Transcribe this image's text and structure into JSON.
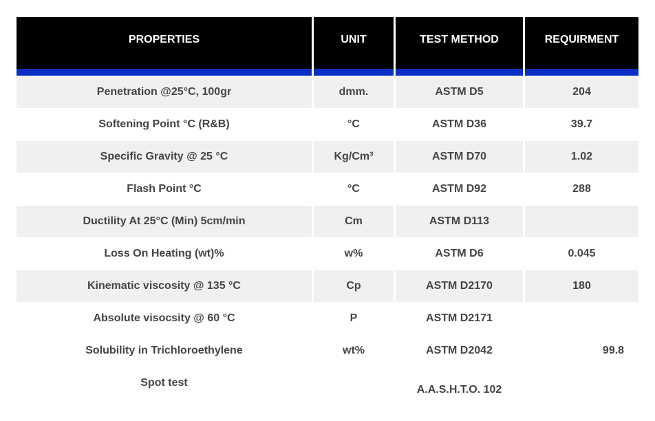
{
  "colors": {
    "header_bg": "#000000",
    "header_accent": "#0b2fc4",
    "stripe": "#f0f0f0",
    "text": "#444444"
  },
  "headers": [
    "PROPERTIES",
    "UNIT",
    "TEST METHOD",
    "REQUIRMENT"
  ],
  "rows": [
    {
      "property": "Penetration @25°C, 100gr",
      "unit": "dmm.",
      "method": "ASTM D5",
      "requirement": "204"
    },
    {
      "property": "Softening Point °C (R&B)",
      "unit": "°C",
      "method": "ASTM D36",
      "requirement": "39.7"
    },
    {
      "property": "Specific Gravity @ 25 °C",
      "unit": "Kg/Cm³",
      "method": "ASTM D70",
      "requirement": "1.02"
    },
    {
      "property": "Flash Point °C",
      "unit": "°C",
      "method": "ASTM D92",
      "requirement": "288"
    },
    {
      "property": "Ductility At 25°C (Min) 5cm/min",
      "unit": "Cm",
      "method": "ASTM D113",
      "requirement": ""
    },
    {
      "property": "Loss On Heating (wt)%",
      "unit": "w%",
      "method": "ASTM D6",
      "requirement": "0.045"
    },
    {
      "property": "Kinematic viscosity @ 135 °C",
      "unit": "Cp",
      "method": "ASTM D2170",
      "requirement": "180"
    },
    {
      "property": "Absolute visocsity @ 60 °C",
      "unit": "P",
      "method": "ASTM D2171",
      "requirement": ""
    },
    {
      "property": "Solubility in Trichloroethylene",
      "unit": "wt%",
      "method": "ASTM D2042",
      "requirement": "99.8"
    },
    {
      "property": "Spot test",
      "unit": "",
      "method": "A.A.S.H.T.O. 102",
      "requirement": ""
    }
  ]
}
